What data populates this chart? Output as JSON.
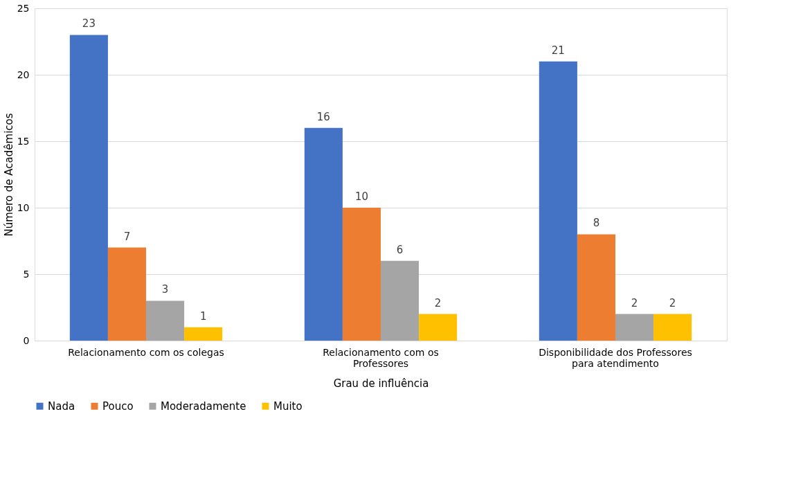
{
  "chart_data": {
    "type": "bar",
    "xlabel": "Grau de influência",
    "ylabel": "Número de Acadêmicos",
    "categories": [
      "Relacionamento com os colegas",
      "Relacionamento com os Professores",
      "Disponibilidade dos Professores para atendimento"
    ],
    "series": [
      {
        "name": "Nada",
        "color": "#4472c4",
        "values": [
          23,
          16,
          21
        ]
      },
      {
        "name": "Pouco",
        "color": "#ed7d31",
        "values": [
          7,
          10,
          8
        ]
      },
      {
        "name": "Moderadamente",
        "color": "#a5a5a5",
        "values": [
          3,
          6,
          2
        ]
      },
      {
        "name": "Muito",
        "color": "#ffc000",
        "values": [
          1,
          2,
          2
        ]
      }
    ],
    "ylim": [
      0,
      25
    ],
    "yticks": [
      0,
      5,
      10,
      15,
      20,
      25
    ],
    "grid": "y",
    "legend": "bottom",
    "data_labels": true
  }
}
